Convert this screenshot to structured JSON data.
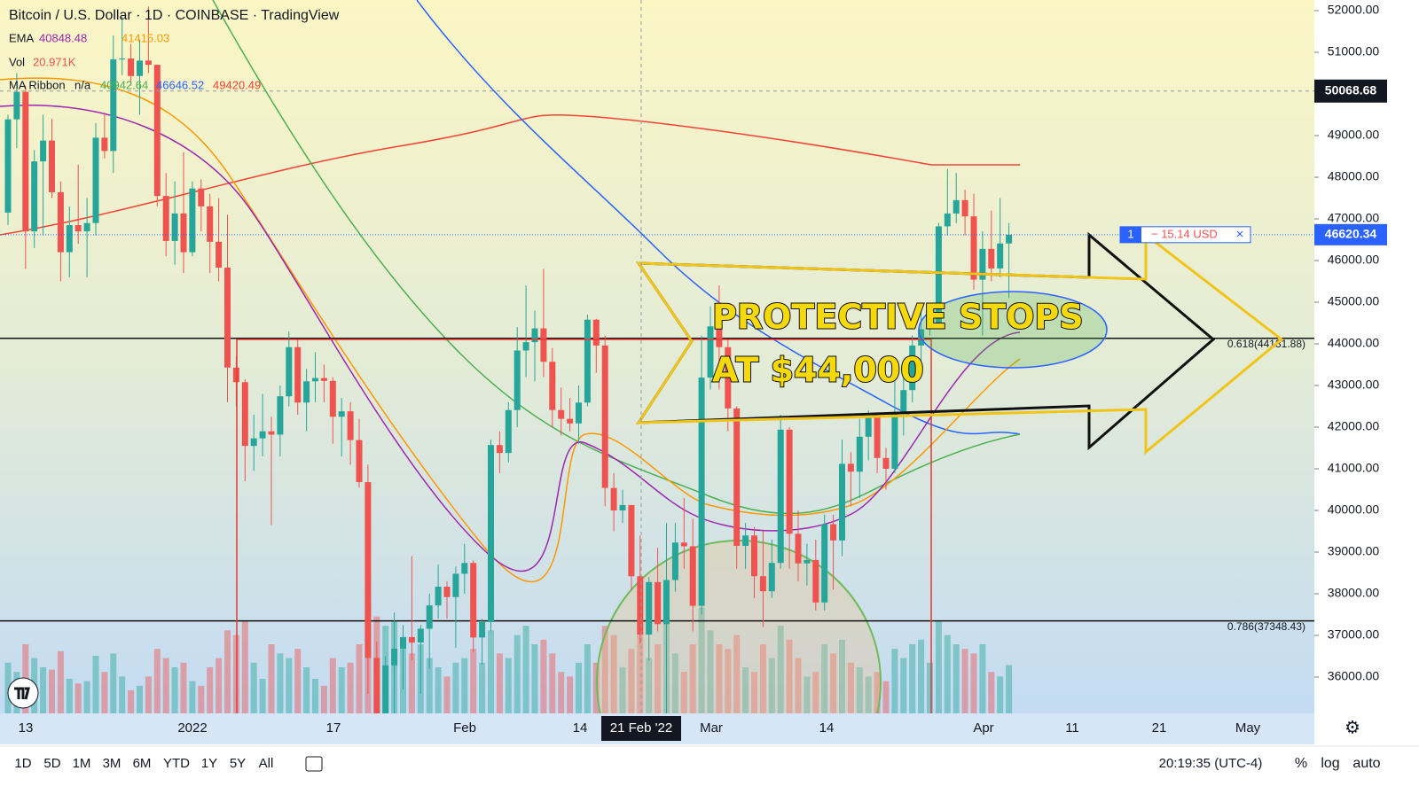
{
  "header": {
    "title": "Bitcoin / U.S. Dollar · 1D · COINBASE · TradingView",
    "ema": {
      "label": "EMA",
      "values": [
        40848.48,
        41415.03
      ]
    },
    "vol": {
      "label": "Vol",
      "value": "20.971K"
    },
    "ribbon": {
      "label": "MA Ribbon",
      "na": "n/a",
      "values": [
        40942.64,
        46646.52,
        49420.49
      ]
    }
  },
  "chart_data": {
    "type": "candlestick",
    "up_color": "#26a69a",
    "down_color": "#ef5350",
    "open": [
      47150,
      49390,
      50050,
      46700,
      48380,
      48880,
      47640,
      46200,
      46850,
      46700,
      46900,
      48950,
      48630,
      50830,
      50850,
      50430,
      50800,
      50700,
      47550,
      46470,
      47130,
      46200,
      47730,
      47300,
      46450,
      45830,
      43430,
      43080,
      41550,
      41730,
      41900,
      41820,
      42740,
      43920,
      42590,
      43100,
      43180,
      43110,
      42250,
      42380,
      41690,
      40680,
      36460,
      35070,
      36280,
      36680,
      36960,
      36830,
      37160,
      37720,
      38170,
      37920,
      38480,
      38740,
      36950,
      37320,
      41570,
      41380,
      42410,
      43840,
      44040,
      44370,
      43570,
      42410,
      42200,
      42090,
      42590,
      44580,
      43960,
      40540,
      40000,
      40130,
      38420,
      37020,
      38280,
      37270,
      38330,
      39230,
      39140,
      37710,
      43190,
      44420,
      43920,
      42450,
      39150,
      39400,
      38420,
      38060,
      38740,
      41940,
      39440,
      38730,
      38810,
      37790,
      39670,
      39280,
      41120,
      40930,
      41770,
      42250,
      41260,
      41000,
      42360,
      42890,
      43960,
      44350,
      44500,
      46820,
      47130,
      47450,
      47060,
      45540,
      46280,
      45810,
      46410
    ],
    "high": [
      49500,
      50500,
      50200,
      48650,
      49500,
      49400,
      47900,
      47300,
      48300,
      47500,
      49300,
      49550,
      51400,
      51850,
      51200,
      51300,
      52100,
      50700,
      48100,
      47900,
      48600,
      47900,
      47950,
      47600,
      47500,
      47100,
      43700,
      43150,
      42300,
      42800,
      42250,
      43000,
      44300,
      44100,
      43400,
      43800,
      43500,
      43200,
      42700,
      42600,
      42200,
      41100,
      36850,
      36500,
      37550,
      37250,
      38900,
      37250,
      38000,
      38700,
      38300,
      38650,
      39200,
      38800,
      37400,
      41700,
      41900,
      42600,
      44400,
      45400,
      44800,
      45800,
      43900,
      42950,
      42700,
      43000,
      44700,
      44600,
      44200,
      40900,
      40500,
      40100,
      39400,
      38400,
      39100,
      39700,
      39700,
      40300,
      39800,
      44200,
      44900,
      45400,
      44100,
      42500,
      39700,
      39600,
      39500,
      39300,
      42300,
      42000,
      40000,
      39200,
      39300,
      39900,
      39900,
      41700,
      41400,
      42200,
      42400,
      42300,
      41500,
      43300,
      43300,
      44200,
      44800,
      44800,
      46900,
      48200,
      48100,
      47700,
      47600,
      46700,
      47200,
      47500,
      46900
    ],
    "low": [
      46850,
      48700,
      45800,
      46300,
      46600,
      47500,
      45500,
      45600,
      46400,
      45600,
      46600,
      48450,
      48100,
      50450,
      50200,
      49500,
      50500,
      47300,
      46100,
      45900,
      45700,
      46100,
      46700,
      45700,
      45500,
      42600,
      42500,
      40700,
      40950,
      41300,
      39650,
      41300,
      42500,
      42300,
      41900,
      42600,
      42600,
      41600,
      41300,
      41100,
      40550,
      35600,
      34000,
      34700,
      32950,
      35700,
      36400,
      35600,
      36200,
      37400,
      37400,
      36700,
      38000,
      36600,
      36300,
      37100,
      40900,
      41150,
      42000,
      43200,
      43100,
      43200,
      42000,
      41800,
      41900,
      41600,
      42500,
      43300,
      40100,
      39500,
      39700,
      38100,
      36800,
      36400,
      37100,
      34300,
      38050,
      38600,
      37100,
      37500,
      42900,
      42900,
      41900,
      38600,
      38600,
      37900,
      37200,
      37900,
      38600,
      38600,
      38300,
      38200,
      37600,
      37600,
      38100,
      38900,
      40100,
      40300,
      41200,
      40900,
      40500,
      40900,
      41800,
      42600,
      43600,
      44200,
      44400,
      46600,
      46900,
      46600,
      45300,
      44200,
      45500,
      45600,
      45100
    ],
    "close": [
      49390,
      50050,
      46700,
      48380,
      48880,
      47640,
      46200,
      46850,
      46700,
      46900,
      48950,
      48630,
      50830,
      50850,
      50430,
      50800,
      50700,
      47550,
      46470,
      47130,
      46200,
      47730,
      47300,
      46450,
      45830,
      43430,
      43080,
      41550,
      41730,
      41900,
      41820,
      42740,
      43920,
      42590,
      43100,
      43180,
      43110,
      42250,
      42380,
      41690,
      40680,
      36460,
      35070,
      36280,
      36680,
      36960,
      36830,
      37160,
      37720,
      38170,
      37920,
      38480,
      38740,
      36950,
      37320,
      41570,
      41380,
      42410,
      43840,
      44040,
      44370,
      43570,
      42410,
      42200,
      42090,
      42590,
      44580,
      43960,
      40540,
      40000,
      40130,
      38420,
      37020,
      38280,
      37270,
      38330,
      39230,
      39140,
      37710,
      43190,
      44420,
      43920,
      42450,
      39150,
      39400,
      38420,
      38060,
      38740,
      41940,
      39440,
      38730,
      38810,
      37790,
      39670,
      39280,
      41120,
      40930,
      41770,
      42250,
      41260,
      41000,
      42360,
      42890,
      43960,
      44350,
      44500,
      46820,
      47130,
      47450,
      47060,
      45540,
      46280,
      45810,
      46410,
      46620
    ],
    "volume": [
      22,
      18,
      30,
      24,
      20,
      19,
      27,
      15,
      13,
      14,
      25,
      18,
      26,
      16,
      10,
      12,
      16,
      28,
      24,
      20,
      22,
      14,
      12,
      20,
      24,
      36,
      34,
      40,
      22,
      15,
      30,
      26,
      24,
      28,
      20,
      15,
      12,
      24,
      20,
      22,
      30,
      45,
      42,
      38,
      40,
      28,
      26,
      30,
      24,
      20,
      16,
      22,
      24,
      28,
      22,
      36,
      26,
      24,
      34,
      38,
      30,
      32,
      26,
      18,
      16,
      22,
      30,
      22,
      38,
      34,
      20,
      28,
      36,
      24,
      30,
      42,
      26,
      18,
      30,
      46,
      36,
      30,
      28,
      34,
      20,
      18,
      30,
      24,
      38,
      32,
      24,
      16,
      18,
      30,
      26,
      32,
      22,
      20,
      16,
      18,
      14,
      28,
      24,
      30,
      32,
      22,
      40,
      34,
      30,
      28,
      26,
      30,
      18,
      16,
      20.971
    ],
    "ylim": [
      35128,
      52255
    ],
    "yticks": [
      {
        "value": 36000,
        "label": "36000.00"
      },
      {
        "value": 37000,
        "label": "37000.00"
      },
      {
        "value": 38000,
        "label": "38000.00"
      },
      {
        "value": 39000,
        "label": "39000.00"
      },
      {
        "value": 40000,
        "label": "40000.00"
      },
      {
        "value": 41000,
        "label": "41000.00"
      },
      {
        "value": 42000,
        "label": "42000.00"
      },
      {
        "value": 43000,
        "label": "43000.00"
      },
      {
        "value": 44000,
        "label": "44000.00"
      },
      {
        "value": 45000,
        "label": "45000.00"
      },
      {
        "value": 46000,
        "label": "46000.00"
      },
      {
        "value": 47000,
        "label": "47000.00"
      },
      {
        "value": 48000,
        "label": "48000.00"
      },
      {
        "value": 49000,
        "label": "49000.00"
      },
      {
        "value": 50000,
        "label": "50000.00"
      },
      {
        "value": 51000,
        "label": "51000.00"
      },
      {
        "value": 52000,
        "label": "52000.00"
      }
    ],
    "xticks": [
      "13",
      "2022",
      "17",
      "Feb",
      "14",
      "Mar",
      "14",
      "Apr",
      "11",
      "21",
      "May"
    ],
    "crosshair_date": "21 Feb '22",
    "crosshair_price": 50068.68,
    "last_price": 46620.34,
    "order": {
      "qty": 1,
      "pnl": "− 15.14 USD",
      "close": "×"
    },
    "fib": [
      {
        "label": "0.618(44131.88)",
        "price": 44131.88
      },
      {
        "label": "0.786(37348.43)",
        "price": 37348.43
      }
    ],
    "annotation": [
      "PROTECTIVE STOPS",
      "AT $44,000"
    ]
  },
  "toolbar": {
    "ranges": [
      "1D",
      "5D",
      "1M",
      "3M",
      "6M",
      "YTD",
      "1Y",
      "5Y",
      "All"
    ],
    "clock": "20:19:35 (UTC-4)",
    "options": [
      "%",
      "log",
      "auto"
    ]
  }
}
